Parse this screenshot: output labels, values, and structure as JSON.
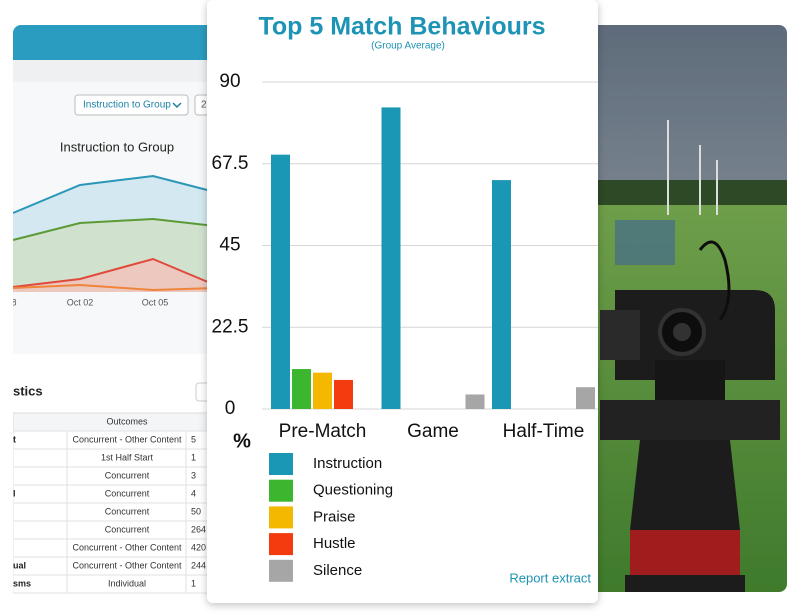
{
  "chart_data": {
    "type": "bar",
    "title": "Top 5 Match Behaviours",
    "subtitle": "(Group Average)",
    "y_label": "%",
    "categories": [
      "Pre-Match",
      "Game",
      "Half-Time"
    ],
    "series": [
      {
        "name": "Instruction",
        "color": "#1a97b4",
        "values": [
          70,
          83,
          63
        ]
      },
      {
        "name": "Questioning",
        "color": "#3cb62e",
        "values": [
          11,
          0,
          0
        ]
      },
      {
        "name": "Praise",
        "color": "#f5b800",
        "values": [
          10,
          0,
          0
        ]
      },
      {
        "name": "Hustle",
        "color": "#f43a0f",
        "values": [
          8,
          0,
          0
        ]
      },
      {
        "name": "Silence",
        "color": "#a6a6a6",
        "values": [
          0,
          4,
          6
        ]
      }
    ],
    "ylim": [
      0,
      90
    ],
    "yticks": [
      0,
      22.5,
      45,
      67.5,
      90
    ],
    "grid": true
  },
  "footer_link": "Report extract",
  "dashboard": {
    "dropdown": "Instruction to Group",
    "button": "2",
    "chart_title": "Instruction to Group",
    "x_labels": [
      "8",
      "Oct 02",
      "Oct 05"
    ],
    "section_title": "stics",
    "table": {
      "header": "Outcomes",
      "rows": [
        {
          "label": "t",
          "outcome": "Concurrent - Other Content",
          "count": "5"
        },
        {
          "outcome": "1st Half Start",
          "count": "1"
        },
        {
          "outcome": "Concurrent",
          "count": "3"
        },
        {
          "label": "l",
          "outcome": "Concurrent",
          "count": "4"
        },
        {
          "outcome": "Concurrent",
          "count": "50"
        },
        {
          "outcome": "Concurrent",
          "count": "264"
        },
        {
          "outcome": "Concurrent - Other Content",
          "count": "420"
        },
        {
          "label": "ual",
          "outcome": "Concurrent - Other Content",
          "count": "244"
        },
        {
          "label": "sms",
          "outcome": "Individual",
          "count": "1"
        }
      ]
    }
  }
}
